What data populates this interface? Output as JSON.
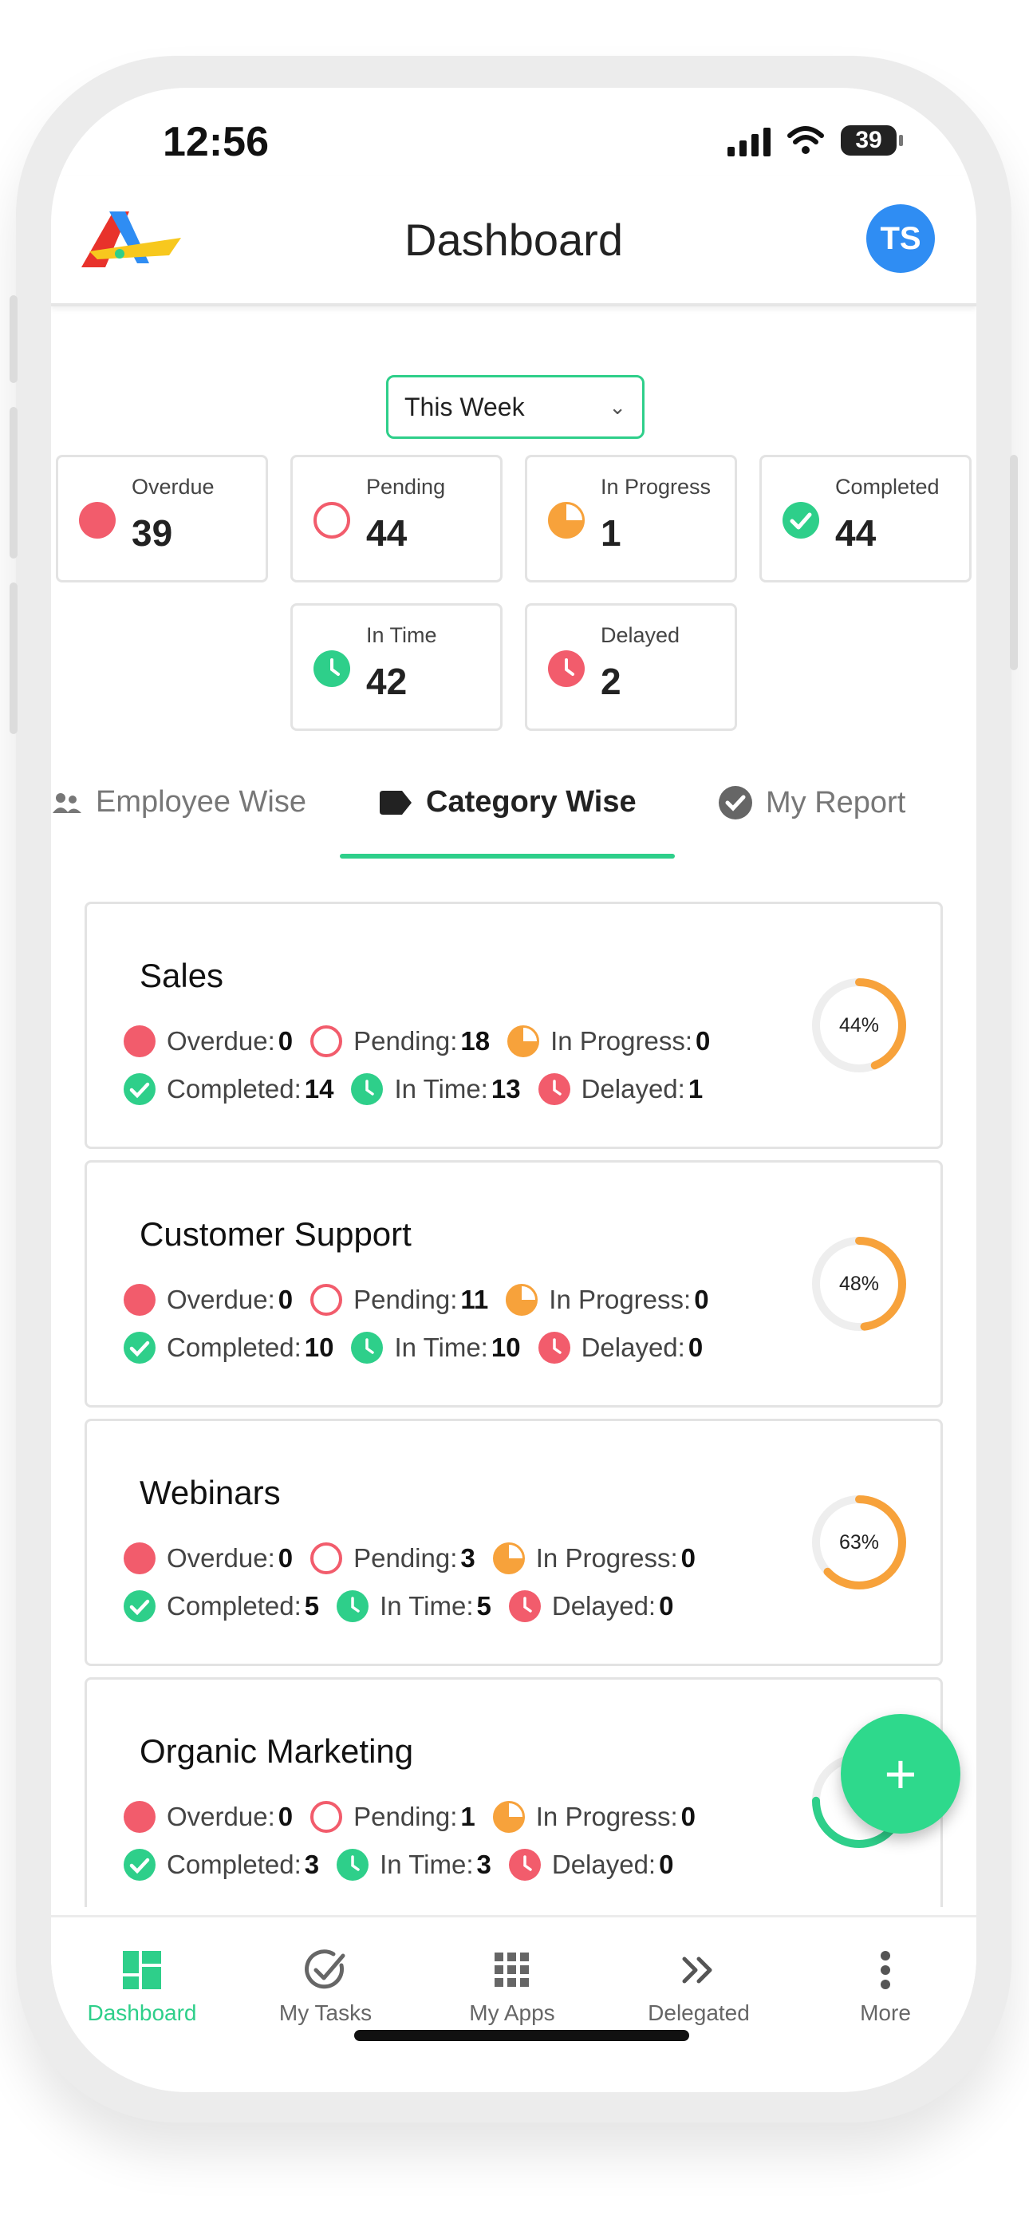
{
  "status": {
    "time": "12:56",
    "battery": "39"
  },
  "header": {
    "title": "Dashboard",
    "avatar_initials": "TS"
  },
  "filter": {
    "value": "This Week"
  },
  "stats": [
    {
      "label": "Overdue",
      "value": "39",
      "icon": "overdue-dot-icon"
    },
    {
      "label": "Pending",
      "value": "44",
      "icon": "pending-circle-icon"
    },
    {
      "label": "In Progress",
      "value": "1",
      "icon": "progress-pie-icon"
    },
    {
      "label": "Completed",
      "value": "44",
      "icon": "check-circle-icon"
    },
    {
      "label": "In Time",
      "value": "42",
      "icon": "clock-green-icon"
    },
    {
      "label": "Delayed",
      "value": "2",
      "icon": "clock-red-icon"
    }
  ],
  "tabs": [
    {
      "label": "Employee Wise",
      "icon": "people-icon"
    },
    {
      "label": "Category Wise",
      "icon": "tag-icon",
      "active": true
    },
    {
      "label": "My Report",
      "icon": "check-badge-icon"
    }
  ],
  "categories": [
    {
      "name": "Sales",
      "overdue": "0",
      "pending": "18",
      "in_progress": "0",
      "completed": "14",
      "in_time": "13",
      "delayed": "1",
      "percent_label": "44%",
      "percent": 0.44
    },
    {
      "name": "Customer Support",
      "overdue": "0",
      "pending": "11",
      "in_progress": "0",
      "completed": "10",
      "in_time": "10",
      "delayed": "0",
      "percent_label": "48%",
      "percent": 0.48
    },
    {
      "name": "Webinars",
      "overdue": "0",
      "pending": "3",
      "in_progress": "0",
      "completed": "5",
      "in_time": "5",
      "delayed": "0",
      "percent_label": "63%",
      "percent": 0.63
    },
    {
      "name": "Organic Marketing",
      "overdue": "0",
      "pending": "1",
      "in_progress": "0",
      "completed": "3",
      "in_time": "3",
      "delayed": "0",
      "percent_label": "",
      "percent": 0.75
    }
  ],
  "labels": {
    "overdue": "Overdue:",
    "pending": "Pending:",
    "in_progress": "In Progress:",
    "completed": "Completed:",
    "in_time": "In Time:",
    "delayed": "Delayed:"
  },
  "fab": {
    "label": "+"
  },
  "nav": [
    {
      "label": "Dashboard",
      "icon": "dashboard-icon",
      "active": true
    },
    {
      "label": "My Tasks",
      "icon": "task-check-icon"
    },
    {
      "label": "My Apps",
      "icon": "grid-apps-icon"
    },
    {
      "label": "Delegated",
      "icon": "double-chevron-icon"
    },
    {
      "label": "More",
      "icon": "more-vertical-icon"
    }
  ],
  "colors": {
    "accent": "#2ecf8a",
    "red": "#f25c6c",
    "orange": "#f7a23b",
    "blue": "#2f8df3"
  }
}
